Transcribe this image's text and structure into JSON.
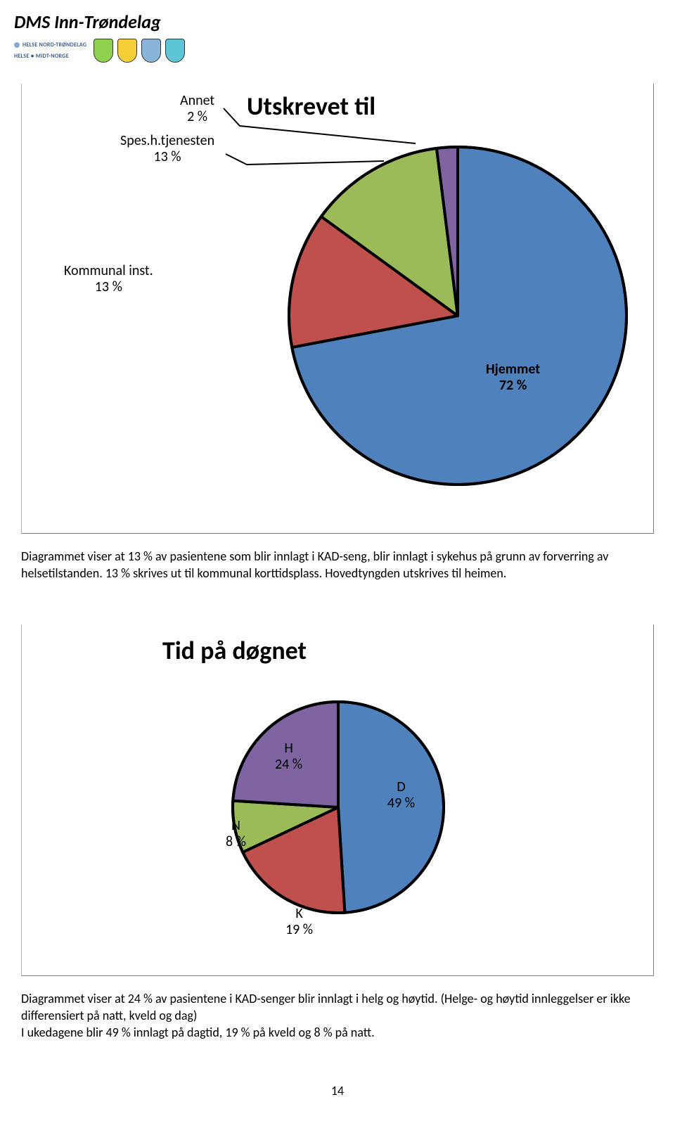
{
  "header": {
    "title": "DMS Inn-Trøndelag",
    "partner1": "HELSE NORD-TRØNDELAG",
    "partner2": "HELSE ● MIDT-NORGE",
    "shield_colors": [
      "#8fd14f",
      "#f7d038",
      "#8ab4d8",
      "#5ec5d6"
    ]
  },
  "chart1": {
    "title": "Utskrevet til",
    "type": "pie",
    "radius": 240,
    "stroke_width": 4,
    "stroke_color": "#000000",
    "slices": [
      {
        "name": "Hjemmet",
        "pct": 72,
        "color": "#4f81bd",
        "label_lines": [
          "Hjemmet",
          "72 %"
        ],
        "label_style": "bold"
      },
      {
        "name": "Kommunal inst.",
        "pct": 13,
        "color": "#c0504d",
        "label_lines": [
          "Kommunal inst.",
          "13 %"
        ]
      },
      {
        "name": "Spes.h.tjenesten",
        "pct": 13,
        "color": "#9bbb59",
        "label_lines": [
          "Spes.h.tjenesten",
          "13 %"
        ]
      },
      {
        "name": "Annet",
        "pct": 2,
        "color": "#8064a2",
        "label_lines": [
          "Annet",
          "2 %"
        ]
      }
    ],
    "caption": "Diagrammet viser at 13 % av pasientene som blir innlagt i KAD-seng, blir innlagt i sykehus på grunn av forverring av helsetilstanden. 13 % skrives ut til kommunal korttidsplass. Hovedtyngden utskrives til heimen."
  },
  "chart2": {
    "title": "Tid på døgnet",
    "type": "pie",
    "radius": 150,
    "stroke_width": 4,
    "stroke_color": "#000000",
    "slices": [
      {
        "name": "D",
        "pct": 49,
        "color": "#4f81bd",
        "label_lines": [
          "D",
          "49 %"
        ]
      },
      {
        "name": "K",
        "pct": 19,
        "color": "#c0504d",
        "label_lines": [
          "K",
          "19 %"
        ]
      },
      {
        "name": "N",
        "pct": 8,
        "color": "#9bbb59",
        "label_lines": [
          "N",
          "8 %"
        ]
      },
      {
        "name": "H",
        "pct": 24,
        "color": "#8064a2",
        "label_lines": [
          "H",
          "24 %"
        ]
      }
    ],
    "caption": "Diagrammet viser at 24 % av pasientene i KAD-senger blir innlagt i helg og høytid. (Helge- og høytid innleggelser er ikke differensiert på natt, kveld og dag)\nI ukedagene blir 49 % innlagt på dagtid, 19 % på kveld og 8 % på natt."
  },
  "page_number": "14"
}
